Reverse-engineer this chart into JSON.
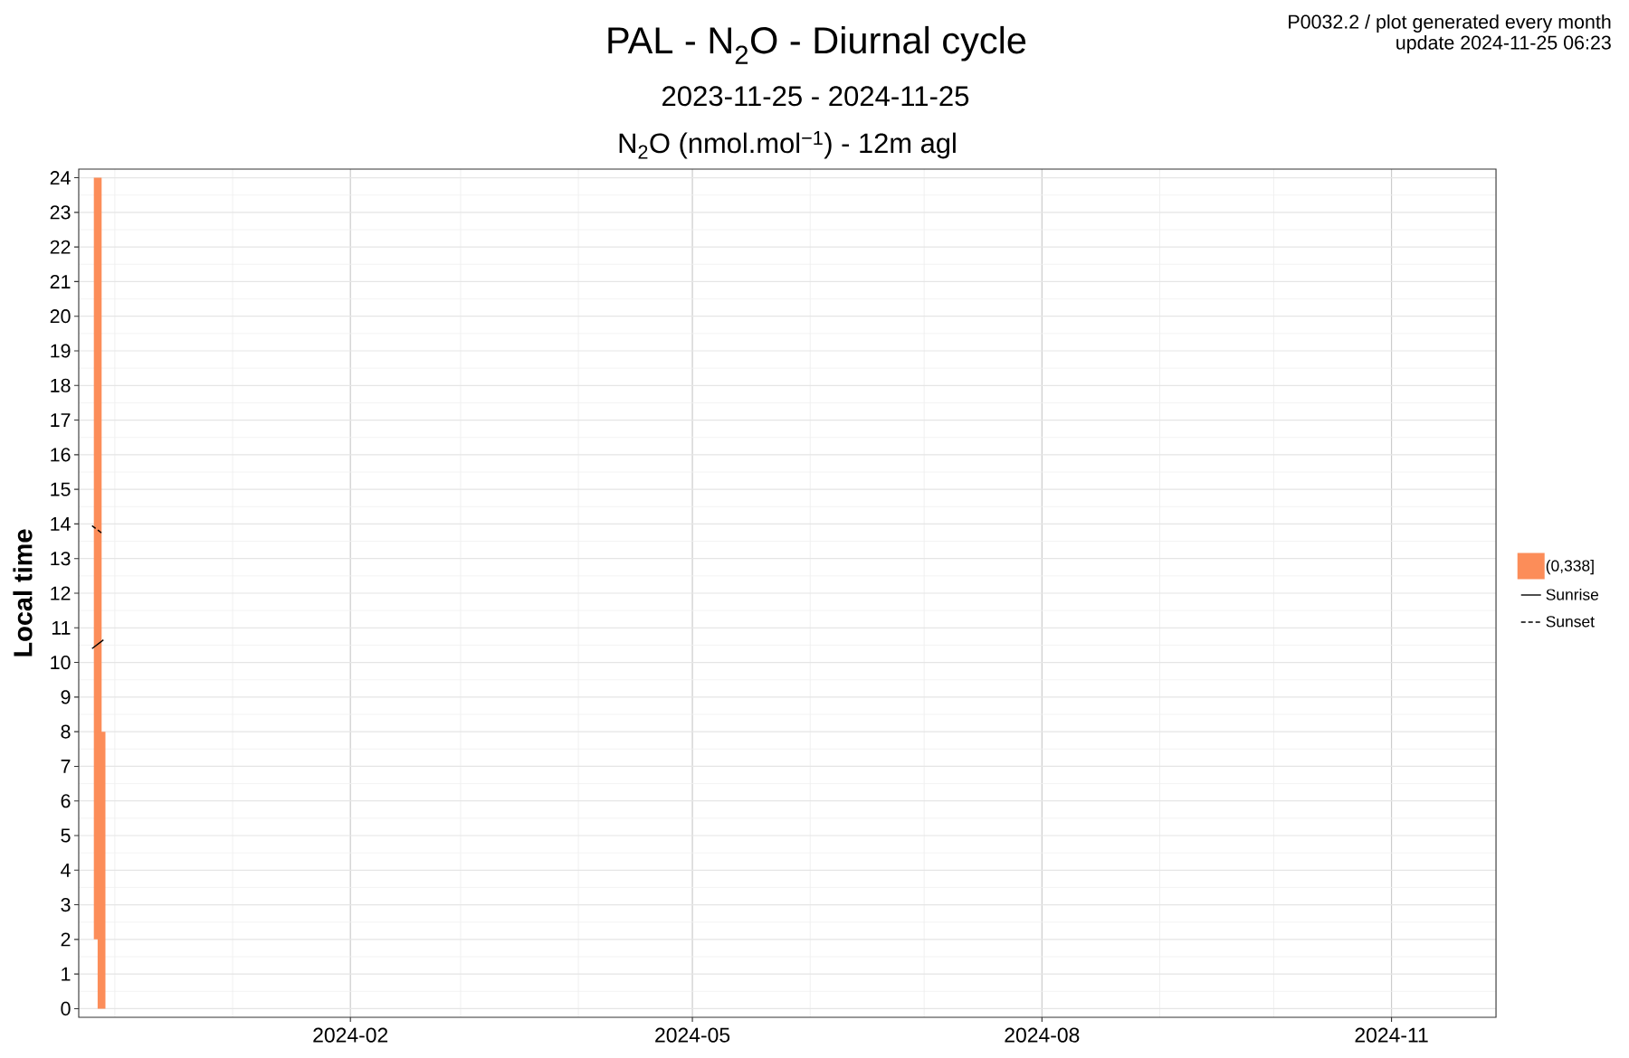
{
  "chart_data": {
    "type": "bar",
    "title": "PAL - N$_{2}$O - Diurnal cycle",
    "subtitle": "2023-11-25 - 2024-11-25",
    "ylabel": "Local time",
    "annotations": [
      "N$_{2}$O (nmol.mol$^{−1}$) - 12m agl",
      "P0032.2 / plot generated every month",
      "update 2024-11-25 06:23"
    ],
    "series": [
      {
        "name": "(0,338]",
        "color": "#fc8d59",
        "x": [
          "2023-11-26T12:00",
          "2023-11-27T12:00"
        ],
        "base": [
          2,
          0
        ],
        "values": [
          22,
          8
        ]
      },
      {
        "name": "Sunrise",
        "type": "line",
        "color": "#000000",
        "line_style": "solid",
        "x": [
          "2023-11-25",
          "2023-11-28"
        ],
        "values": [
          10.4,
          10.65
        ]
      },
      {
        "name": "Sunset",
        "type": "line",
        "color": "#000000",
        "line_style": "dashed",
        "x": [
          "2023-11-25",
          "2023-11-28"
        ],
        "values": [
          13.95,
          13.7
        ]
      }
    ],
    "xlim": [
      "2023-11-21T12:00",
      "2024-11-28T12:00"
    ],
    "xticks": [
      {
        "value": "2023-12-01",
        "label": null
      },
      {
        "value": "2024-01-01",
        "label": null
      },
      {
        "value": "2024-02-01",
        "label": "2024-02"
      },
      {
        "value": "2024-03-01",
        "label": null
      },
      {
        "value": "2024-04-01",
        "label": null
      },
      {
        "value": "2024-05-01",
        "label": "2024-05"
      },
      {
        "value": "2024-06-01",
        "label": null
      },
      {
        "value": "2024-07-01",
        "label": null
      },
      {
        "value": "2024-08-01",
        "label": "2024-08"
      },
      {
        "value": "2024-09-01",
        "label": null
      },
      {
        "value": "2024-10-01",
        "label": null
      },
      {
        "value": "2024-11-01",
        "label": "2024-11"
      }
    ],
    "ylim": [
      -0.25,
      24.25
    ],
    "yticks": [
      0,
      {
        "value": 0.5,
        "label": null
      },
      1,
      {
        "value": 1.5,
        "label": null
      },
      2,
      {
        "value": 2.5,
        "label": null
      },
      3,
      {
        "value": 3.5,
        "label": null
      },
      4,
      {
        "value": 4.5,
        "label": null
      },
      5,
      {
        "value": 5.5,
        "label": null
      },
      6,
      {
        "value": 6.5,
        "label": null
      },
      7,
      {
        "value": 7.5,
        "label": null
      },
      8,
      {
        "value": 8.5,
        "label": null
      },
      9,
      {
        "value": 9.5,
        "label": null
      },
      10,
      {
        "value": 10.5,
        "label": null
      },
      11,
      {
        "value": 11.5,
        "label": null
      },
      12,
      {
        "value": 12.5,
        "label": null
      },
      13,
      {
        "value": 13.5,
        "label": null
      },
      14,
      {
        "value": 14.5,
        "label": null
      },
      15,
      {
        "value": 15.5,
        "label": null
      },
      16,
      {
        "value": 16.5,
        "label": null
      },
      17,
      {
        "value": 17.5,
        "label": null
      },
      18,
      {
        "value": 18.5,
        "label": null
      },
      19,
      {
        "value": 19.5,
        "label": null
      },
      20,
      {
        "value": 20.5,
        "label": null
      },
      21,
      {
        "value": 21.5,
        "label": null
      },
      22,
      {
        "value": 22.5,
        "label": null
      },
      23,
      {
        "value": 23.5,
        "label": null
      },
      24
    ],
    "grid": true,
    "legend": "right"
  }
}
